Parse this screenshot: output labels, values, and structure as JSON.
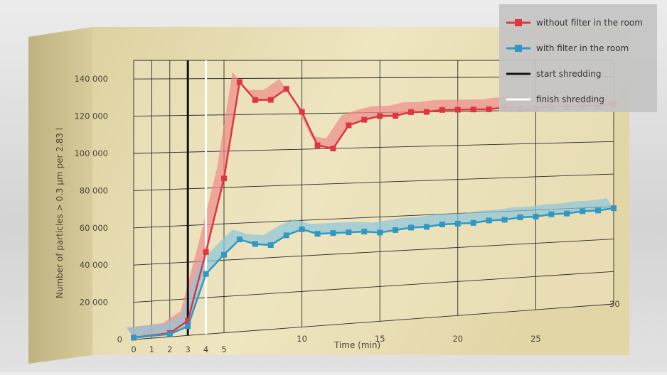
{
  "chart_data": {
    "type": "line",
    "title": "",
    "xlabel": "Time (min)",
    "ylabel": "Number of particles > 0.3 µm per 2.83 l",
    "x_ticks": [
      0,
      1,
      2,
      3,
      4,
      5,
      10,
      15,
      20,
      25,
      30
    ],
    "y_ticks": [
      0,
      20000,
      40000,
      60000,
      80000,
      100000,
      120000,
      140000
    ],
    "x_tick_labels": [
      "0",
      "1",
      "2",
      "3",
      "4",
      "5",
      "10",
      "15",
      "20",
      "25",
      "30"
    ],
    "y_tick_labels": [
      "0",
      "20 000",
      "40 000",
      "60 000",
      "80 000",
      "100 000",
      "120 000",
      "140 000"
    ],
    "xlim": [
      0,
      30
    ],
    "ylim": [
      0,
      150000
    ],
    "grid": true,
    "legend_position": "top-right",
    "series": [
      {
        "name": "without filter in the room",
        "color": "#e0343f",
        "x": [
          0,
          2,
          3,
          4,
          5,
          6,
          7,
          8,
          9,
          10,
          11,
          12,
          13,
          14,
          15,
          16,
          17,
          18,
          19,
          20,
          21,
          22,
          23,
          24,
          25,
          26,
          27,
          28,
          29,
          30
        ],
        "y": [
          1000,
          2000,
          8000,
          45000,
          85000,
          138000,
          128000,
          128000,
          134000,
          121000,
          102000,
          100000,
          113000,
          116000,
          118000,
          118000,
          120000,
          120000,
          121000,
          121000,
          121000,
          121000,
          122000,
          121000,
          121000,
          122000,
          122000,
          122000,
          122000,
          123000
        ]
      },
      {
        "name": "with filter in the room",
        "color": "#2f98c4",
        "x": [
          0,
          2,
          3,
          4,
          5,
          6,
          7,
          8,
          9,
          10,
          11,
          12,
          13,
          14,
          15,
          16,
          17,
          18,
          19,
          20,
          21,
          22,
          23,
          24,
          25,
          26,
          27,
          28,
          29,
          30
        ],
        "y": [
          1000,
          1500,
          5000,
          33000,
          43000,
          51000,
          48000,
          47000,
          52000,
          55000,
          52000,
          52000,
          52000,
          52000,
          51000,
          52000,
          53000,
          53000,
          54000,
          54000,
          54000,
          55000,
          55000,
          56000,
          56000,
          57000,
          57000,
          58000,
          58000,
          59000
        ]
      }
    ],
    "markers": [
      {
        "name": "start shredding",
        "x": 3,
        "color": "#111111"
      },
      {
        "name": "finish shredding",
        "x": 4,
        "color": "#ffffff"
      }
    ]
  }
}
